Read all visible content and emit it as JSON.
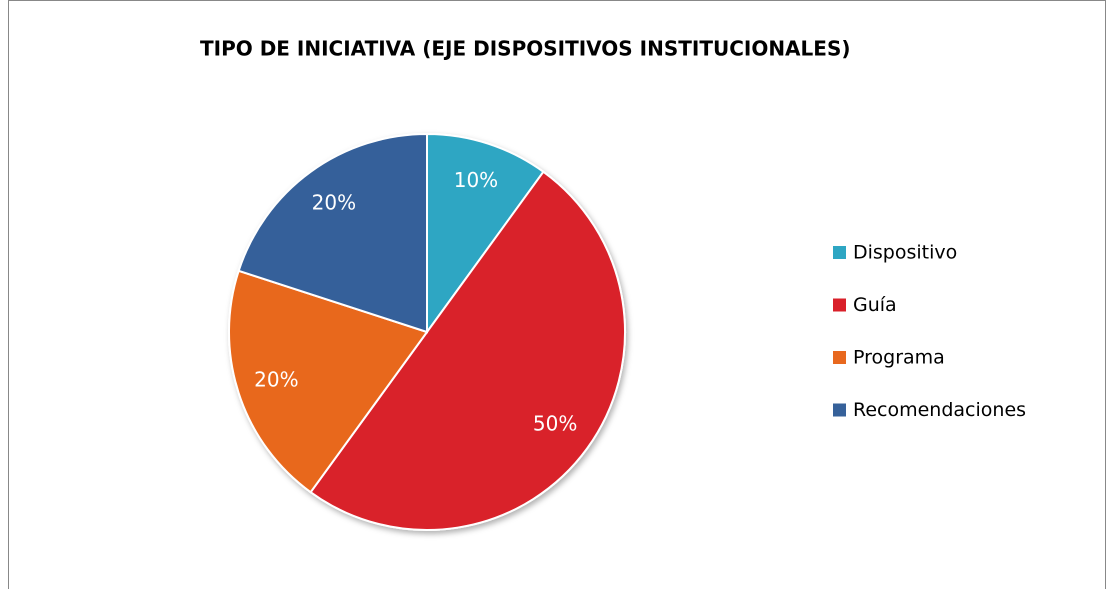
{
  "chart_data": {
    "type": "pie",
    "title": "TIPO DE INICIATIVA (EJE DISPOSITIVOS INSTITUCIONALES)",
    "categories": [
      "Dispositivo",
      "Guía",
      "Programa",
      "Recomendaciones"
    ],
    "values": [
      10,
      50,
      20,
      20
    ],
    "value_labels": [
      "10%",
      "50%",
      "20%",
      "20%"
    ],
    "colors": [
      "#2ea6c3",
      "#d9202a",
      "#e8681e",
      "#36619a"
    ],
    "legend": "right"
  }
}
